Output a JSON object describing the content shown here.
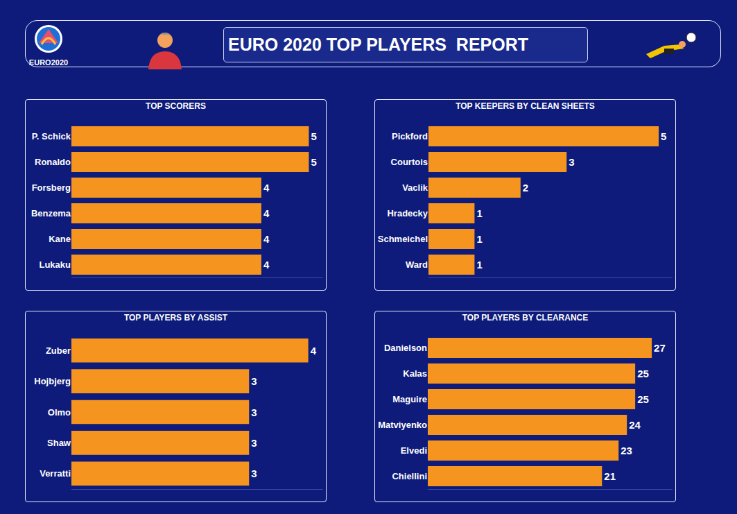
{
  "header": {
    "title": "EURO 2020 TOP PLAYERS  REPORT",
    "logo_text": "EURO2020"
  },
  "chart_data": [
    {
      "type": "bar",
      "title": "TOP SCORERS",
      "orientation": "horizontal",
      "categories": [
        "P. Schick",
        "Ronaldo",
        "Forsberg",
        "Benzema",
        "Kane",
        "Lukaku"
      ],
      "values": [
        5,
        5,
        4,
        4,
        4,
        4
      ],
      "color": "#f5951f",
      "xlim": [
        0,
        5.3
      ],
      "data_labels": true,
      "tick_labels": "y",
      "grid": false
    },
    {
      "type": "bar",
      "title": "TOP KEEPERS BY CLEAN SHEETS",
      "orientation": "horizontal",
      "categories": [
        "Pickford",
        "Courtois",
        "Vaclik",
        "Hradecky",
        "Schmeichel",
        "Ward"
      ],
      "values": [
        5,
        3,
        2,
        1,
        1,
        1
      ],
      "color": "#f5951f",
      "xlim": [
        0,
        5.3
      ],
      "data_labels": true,
      "tick_labels": "y",
      "grid": false
    },
    {
      "type": "bar",
      "title": "TOP PLAYERS BY ASSIST",
      "orientation": "horizontal",
      "categories": [
        "Zuber",
        "Hojbjerg",
        "Olmo",
        "Shaw",
        "Verratti"
      ],
      "values": [
        4,
        3,
        3,
        3,
        3
      ],
      "color": "#f5951f",
      "xlim": [
        0,
        4.25
      ],
      "data_labels": true,
      "tick_labels": "y",
      "grid": false
    },
    {
      "type": "bar",
      "title": "TOP PLAYERS BY CLEARANCE",
      "orientation": "horizontal",
      "categories": [
        "Danielson",
        "Kalas",
        "Maguire",
        "Matviyenko",
        "Elvedi",
        "Chiellini"
      ],
      "values": [
        27,
        25,
        25,
        24,
        23,
        21
      ],
      "color": "#f5951f",
      "xlim": [
        0,
        29.5
      ],
      "data_labels": true,
      "tick_labels": "y",
      "grid": false
    }
  ]
}
